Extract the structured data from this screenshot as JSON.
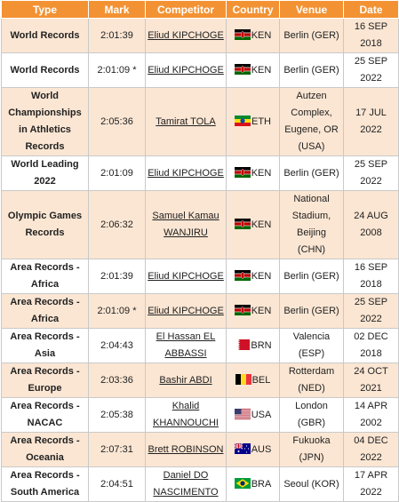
{
  "headers": [
    "Type",
    "Mark",
    "Competitor",
    "Country",
    "Venue",
    "Date"
  ],
  "rows": [
    {
      "type": "World Records",
      "mark": "2:01:39",
      "competitor": "Eliud KIPCHOGE",
      "flag": "kenya-flag-icon",
      "country": "KEN",
      "venue": "Berlin (GER)",
      "date": "16 SEP 2018"
    },
    {
      "type": "World Records",
      "mark": "2:01:09 *",
      "competitor": "Eliud KIPCHOGE",
      "flag": "kenya-flag-icon",
      "country": "KEN",
      "venue": "Berlin (GER)",
      "date": "25 SEP 2022"
    },
    {
      "type": "World Championships in Athletics Records",
      "mark": "2:05:36",
      "competitor": "Tamirat TOLA",
      "flag": "ethiopia-flag-icon",
      "country": "ETH",
      "venue": "Autzen Complex, Eugene, OR (USA)",
      "date": "17 JUL 2022"
    },
    {
      "type": "World Leading 2022",
      "mark": "2:01:09",
      "competitor": "Eliud KIPCHOGE",
      "flag": "kenya-flag-icon",
      "country": "KEN",
      "venue": "Berlin (GER)",
      "date": "25 SEP 2022"
    },
    {
      "type": "Olympic Games Records",
      "mark": "2:06:32",
      "competitor": "Samuel Kamau WANJIRU",
      "flag": "kenya-flag-icon",
      "country": "KEN",
      "venue": "National Stadium, Beijing (CHN)",
      "date": "24 AUG 2008"
    },
    {
      "type": "Area Records - Africa",
      "mark": "2:01:39",
      "competitor": "Eliud KIPCHOGE",
      "flag": "kenya-flag-icon",
      "country": "KEN",
      "venue": "Berlin (GER)",
      "date": "16 SEP 2018"
    },
    {
      "type": "Area Records - Africa",
      "mark": "2:01:09 *",
      "competitor": "Eliud KIPCHOGE",
      "flag": "kenya-flag-icon",
      "country": "KEN",
      "venue": "Berlin (GER)",
      "date": "25 SEP 2022"
    },
    {
      "type": "Area Records - Asia",
      "mark": "2:04:43",
      "competitor": "El Hassan EL ABBASSI",
      "flag": "bahrain-flag-icon",
      "country": "BRN",
      "venue": "Valencia (ESP)",
      "date": "02 DEC 2018"
    },
    {
      "type": "Area Records - Europe",
      "mark": "2:03:36",
      "competitor": "Bashir ABDI",
      "flag": "belgium-flag-icon",
      "country": "BEL",
      "venue": "Rotterdam (NED)",
      "date": "24 OCT 2021"
    },
    {
      "type": "Area Records - NACAC",
      "mark": "2:05:38",
      "competitor": "Khalid KHANNOUCHI",
      "flag": "usa-flag-icon",
      "country": "USA",
      "venue": "London (GBR)",
      "date": "14 APR 2002"
    },
    {
      "type": "Area Records - Oceania",
      "mark": "2:07:31",
      "competitor": "Brett ROBINSON",
      "flag": "australia-flag-icon",
      "country": "AUS",
      "venue": "Fukuoka (JPN)",
      "date": "04 DEC 2022"
    },
    {
      "type": "Area Records - South America",
      "mark": "2:04:51",
      "competitor": "Daniel DO NASCIMENTO",
      "flag": "brazil-flag-icon",
      "country": "BRA",
      "venue": "Seoul (KOR)",
      "date": "17 APR 2022"
    }
  ]
}
